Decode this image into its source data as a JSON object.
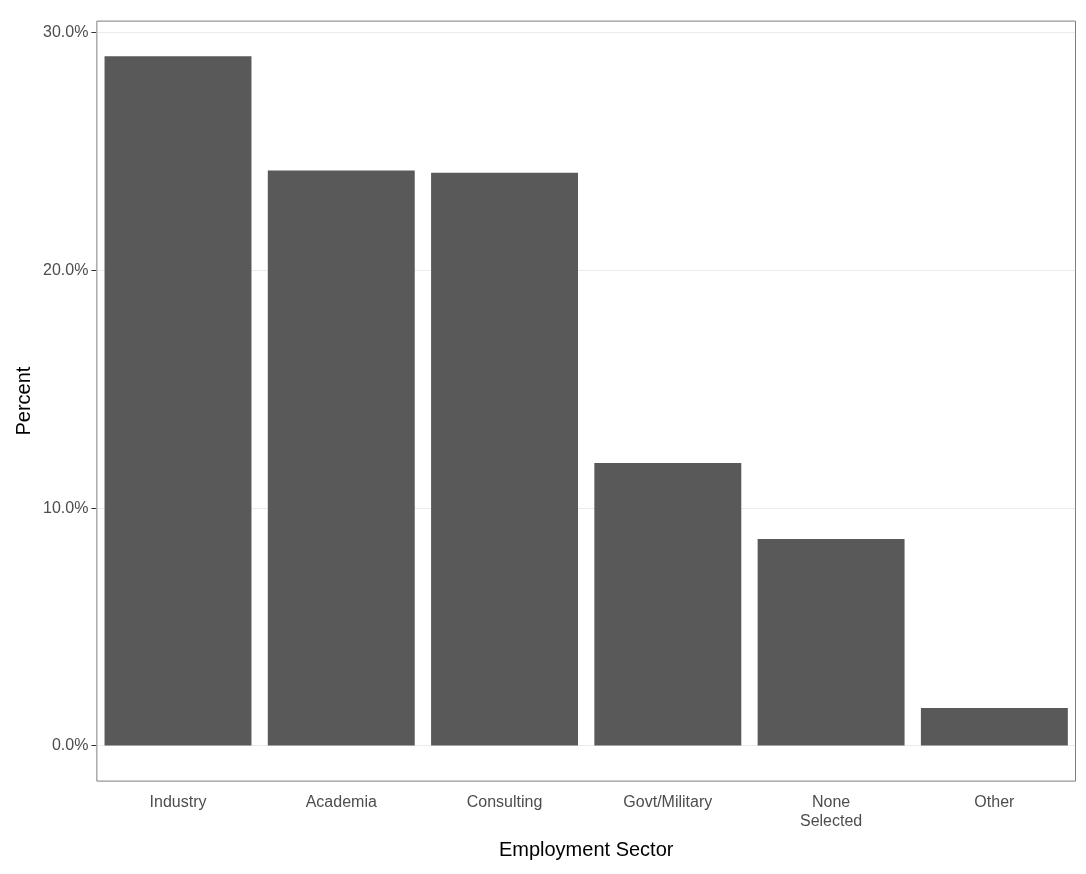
{
  "chart_data": {
    "type": "bar",
    "xlabel": "Employment Sector",
    "ylabel": "Percent",
    "categories": [
      "Industry",
      "Academia",
      "Consulting",
      "Govt/Military",
      "None\nSelected",
      "Other"
    ],
    "values": [
      29.0,
      24.2,
      24.1,
      11.9,
      8.7,
      1.6
    ],
    "color": "#595959",
    "ylim": [
      -1.5,
      30.5
    ],
    "yticks": [
      {
        "value": 0,
        "label": "0.0%"
      },
      {
        "value": 10,
        "label": "10.0%"
      },
      {
        "value": 20,
        "label": "20.0%"
      },
      {
        "value": 30,
        "label": "30.0%"
      }
    ],
    "grid": "y",
    "legend": false
  }
}
